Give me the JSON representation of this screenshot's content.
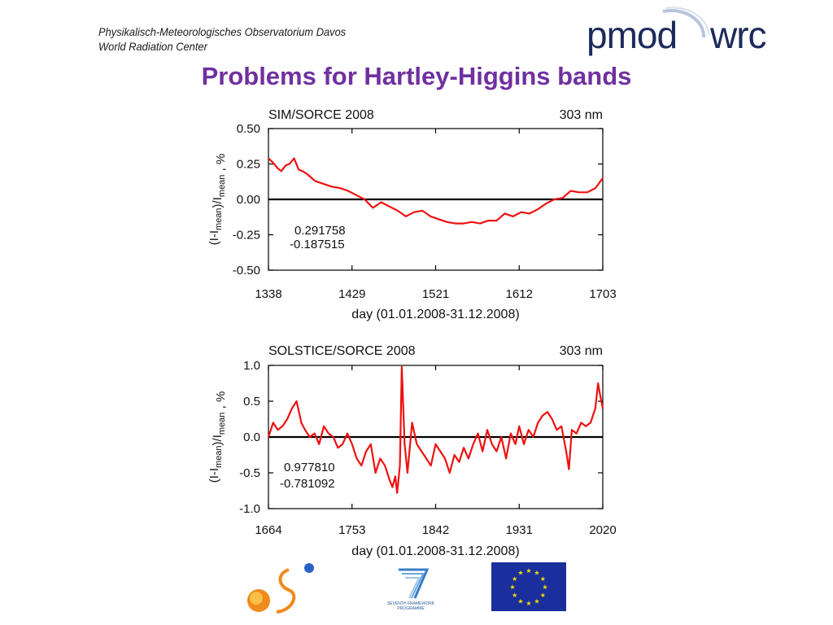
{
  "header": {
    "institute_line1": "Physikalisch-Meteorologisches Observatorium Davos",
    "institute_line2": "World Radiation Center",
    "logo_left": "pmod",
    "logo_right": "wrc"
  },
  "slide": {
    "title": "Problems for Hartley-Higgins bands"
  },
  "colors": {
    "title": "#7030a0",
    "series": "#ee1111",
    "zero_line": "#000000",
    "logo": "#1d2b5c",
    "eu_flag": "#1a2f9c",
    "eu_stars": "#ffdd00"
  },
  "chart_data": [
    {
      "type": "line",
      "title": "SIM/SORCE 2008",
      "wavelength_label": "303 nm",
      "xlabel": "day (01.01.2008-31.12.2008)",
      "ylabel": "(I-I_mean)/I_mean , %",
      "xlim": [
        1338,
        1703
      ],
      "ylim": [
        -0.5,
        0.5
      ],
      "xticks": [
        "1338",
        "1429",
        "1521",
        "1612",
        "1703"
      ],
      "yticks": [
        "0.50",
        "0.25",
        "0.00",
        "-0.25",
        "-0.50"
      ],
      "annotation_max": "0.291758",
      "annotation_min": "-0.187515",
      "zero_line": true,
      "series": [
        {
          "x": [
            1338,
            1343,
            1348,
            1352,
            1357,
            1361,
            1366,
            1371,
            1375,
            1380,
            1389,
            1398,
            1407,
            1416,
            1425,
            1434,
            1443,
            1452,
            1461,
            1470,
            1479,
            1488,
            1497,
            1506,
            1515,
            1524,
            1533,
            1542,
            1551,
            1560,
            1569,
            1578,
            1587,
            1596,
            1605,
            1614,
            1623,
            1632,
            1641,
            1650,
            1659,
            1668,
            1677,
            1686,
            1695,
            1703
          ],
          "y": [
            0.29,
            0.26,
            0.22,
            0.2,
            0.24,
            0.25,
            0.29,
            0.21,
            0.2,
            0.18,
            0.13,
            0.11,
            0.09,
            0.08,
            0.06,
            0.03,
            0.0,
            -0.06,
            -0.02,
            -0.05,
            -0.08,
            -0.12,
            -0.09,
            -0.08,
            -0.12,
            -0.14,
            -0.16,
            -0.17,
            -0.17,
            -0.16,
            -0.17,
            -0.15,
            -0.15,
            -0.1,
            -0.12,
            -0.09,
            -0.1,
            -0.07,
            -0.03,
            0.0,
            0.01,
            0.06,
            0.05,
            0.05,
            0.08,
            0.15
          ]
        }
      ]
    },
    {
      "type": "line",
      "title": "SOLSTICE/SORCE 2008",
      "wavelength_label": "303 nm",
      "xlabel": "day (01.01.2008-31.12.2008)",
      "ylabel": "(I-I_mean)/I_mean , %",
      "xlim": [
        1664,
        2020
      ],
      "ylim": [
        -1.0,
        1.0
      ],
      "xticks": [
        "1664",
        "1753",
        "1842",
        "1931",
        "2020"
      ],
      "yticks": [
        "1.0",
        "0.5",
        "0.0",
        "-0.5",
        "-1.0"
      ],
      "annotation_max": "0.977810",
      "annotation_min": "-0.781092",
      "zero_line": true,
      "series": [
        {
          "x": [
            1664,
            1669,
            1674,
            1679,
            1684,
            1689,
            1694,
            1699,
            1703,
            1708,
            1713,
            1718,
            1723,
            1728,
            1733,
            1738,
            1743,
            1748,
            1753,
            1758,
            1763,
            1768,
            1773,
            1778,
            1783,
            1788,
            1793,
            1796,
            1799,
            1801,
            1804,
            1806,
            1809,
            1812,
            1817,
            1822,
            1827,
            1832,
            1837,
            1842,
            1847,
            1852,
            1857,
            1862,
            1867,
            1872,
            1877,
            1882,
            1887,
            1892,
            1897,
            1902,
            1907,
            1912,
            1917,
            1922,
            1927,
            1931,
            1936,
            1941,
            1946,
            1951,
            1956,
            1961,
            1966,
            1971,
            1976,
            1981,
            1984,
            1987,
            1992,
            1997,
            2002,
            2007,
            2012,
            2015,
            2017,
            2020
          ],
          "y": [
            0.0,
            0.2,
            0.1,
            0.15,
            0.25,
            0.4,
            0.5,
            0.2,
            0.1,
            0.0,
            0.05,
            -0.1,
            0.15,
            0.05,
            0.0,
            -0.15,
            -0.1,
            0.05,
            -0.1,
            -0.3,
            -0.4,
            -0.2,
            -0.1,
            -0.5,
            -0.3,
            -0.4,
            -0.6,
            -0.7,
            -0.55,
            -0.78,
            -0.4,
            0.98,
            -0.1,
            -0.5,
            0.2,
            -0.1,
            -0.2,
            -0.3,
            -0.4,
            -0.1,
            -0.2,
            -0.3,
            -0.5,
            -0.25,
            -0.35,
            -0.15,
            -0.3,
            -0.1,
            0.05,
            -0.2,
            0.1,
            -0.1,
            -0.2,
            0.0,
            -0.3,
            0.05,
            -0.1,
            0.15,
            -0.1,
            0.1,
            0.0,
            0.2,
            0.3,
            0.35,
            0.25,
            0.1,
            0.15,
            -0.2,
            -0.45,
            0.1,
            0.05,
            0.2,
            0.15,
            0.2,
            0.4,
            0.75,
            0.6,
            0.4
          ]
        }
      ]
    }
  ],
  "footer": {
    "logo1": "solar-logo",
    "logo2_text_line1": "SEVENTH FRAMEWORK",
    "logo2_text_line2": "PROGRAMME",
    "logo3": "eu-flag"
  }
}
